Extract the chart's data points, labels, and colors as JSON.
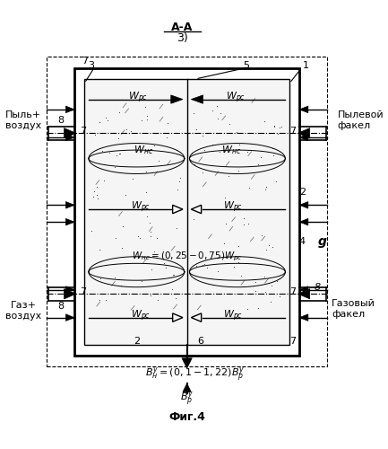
{
  "title_top": "А-А",
  "subtitle": "3)",
  "fig_label": "Фиг.4",
  "label_dust_air": "Пыль+\nвоздух",
  "label_gas_air": "Газ+\nвоздух",
  "label_dust_torch": "Пылевой\nфакел",
  "label_gas_torch": "Газовый\nфакел",
  "background": "#ffffff",
  "line_color": "#000000"
}
